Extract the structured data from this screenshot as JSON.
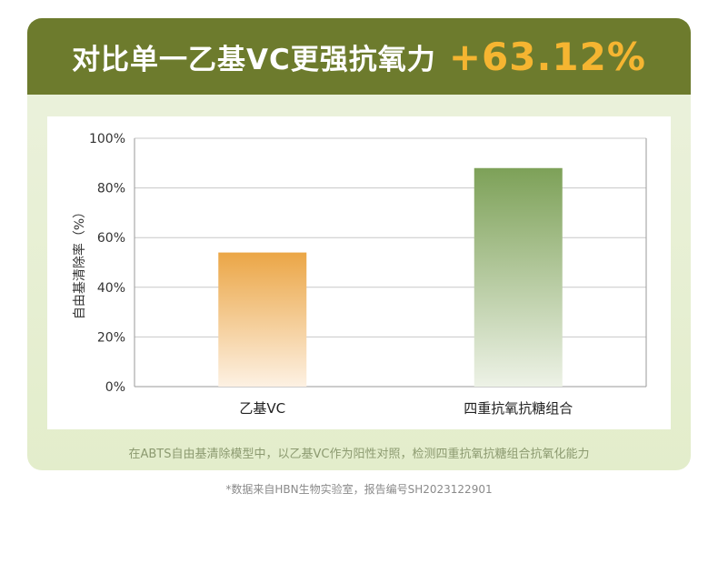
{
  "header": {
    "title": "对比单一乙基VC更强抗氧力",
    "highlight": "+63.12%",
    "background_color": "#6d7b2d",
    "highlight_color": "#f5b531"
  },
  "chart_data": {
    "type": "bar",
    "categories": [
      "乙基VC",
      "四重抗氧抗糖组合"
    ],
    "values": [
      54,
      88
    ],
    "ylabel": "自由基清除率（%）",
    "ylim": [
      0,
      100
    ],
    "yticks": [
      "0%",
      "20%",
      "40%",
      "60%",
      "80%",
      "100%"
    ],
    "ytick_values": [
      0,
      20,
      40,
      60,
      80,
      100
    ],
    "grid": true,
    "bar_colors": [
      {
        "top": "#eba646",
        "bottom": "#fdf1e3"
      },
      {
        "top": "#7da158",
        "bottom": "#edf2e6"
      }
    ]
  },
  "footnote_inner": "在ABTS自由基清除模型中，以乙基VC作为阳性对照，检测四重抗氧抗糖组合抗氧化能力",
  "footnote_outer": "*数据来自HBN生物实验室，报告编号SH2023122901"
}
